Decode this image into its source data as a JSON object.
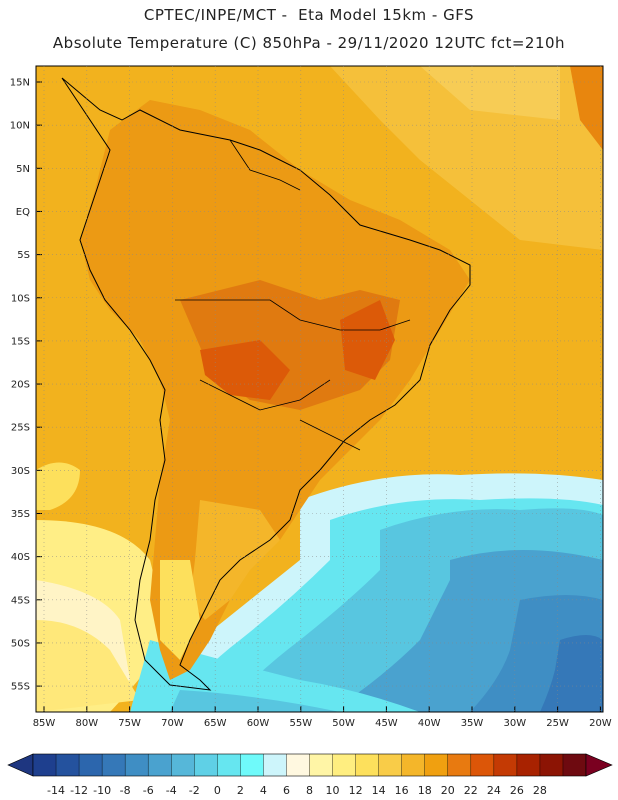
{
  "header": {
    "line1": "CPTEC/INPE/MCT -  Eta Model 15km - GFS",
    "line2": "Absolute Temperature (C) 850hPa - 29/11/2020 12UTC fct=210h"
  },
  "axes": {
    "lat_labels": [
      "15N",
      "10N",
      "5N",
      "EQ",
      "5S",
      "10S",
      "15S",
      "20S",
      "25S",
      "30S",
      "35S",
      "40S",
      "45S",
      "50S",
      "55S"
    ],
    "lon_labels": [
      "85W",
      "80W",
      "75W",
      "70W",
      "65W",
      "60W",
      "55W",
      "50W",
      "45W",
      "40W",
      "35W",
      "30W",
      "25W",
      "20W"
    ]
  },
  "colorbar": {
    "labels": [
      "-14",
      "-12",
      "-10",
      "-8",
      "-6",
      "-4",
      "-2",
      "0",
      "2",
      "4",
      "6",
      "8",
      "10",
      "12",
      "14",
      "16",
      "18",
      "20",
      "22",
      "24",
      "26",
      "28"
    ],
    "colors": [
      "#1e3f8e",
      "#24529e",
      "#2c66ad",
      "#3578b8",
      "#3f8ec4",
      "#4aa2cf",
      "#56b7d9",
      "#5fd0e6",
      "#66e6f0",
      "#6ffafa",
      "#cdf5fb",
      "#fff8e0",
      "#fff5a6",
      "#ffee80",
      "#fde05c",
      "#f9cc48",
      "#f4b62a",
      "#f0a010",
      "#e87a10",
      "#dc5608",
      "#c43a04",
      "#a82200",
      "#8c1404",
      "#6e0a10"
    ],
    "end_low": "#1e3680",
    "end_high": "#7a0020"
  },
  "legend_colors": {
    "ocean_warm": "#f2b21e",
    "continent": "#ec9a14",
    "hot_core": "#dc5a08",
    "cool_ocean": "#58c6e0",
    "cold_ocean": "#3a90c6"
  }
}
